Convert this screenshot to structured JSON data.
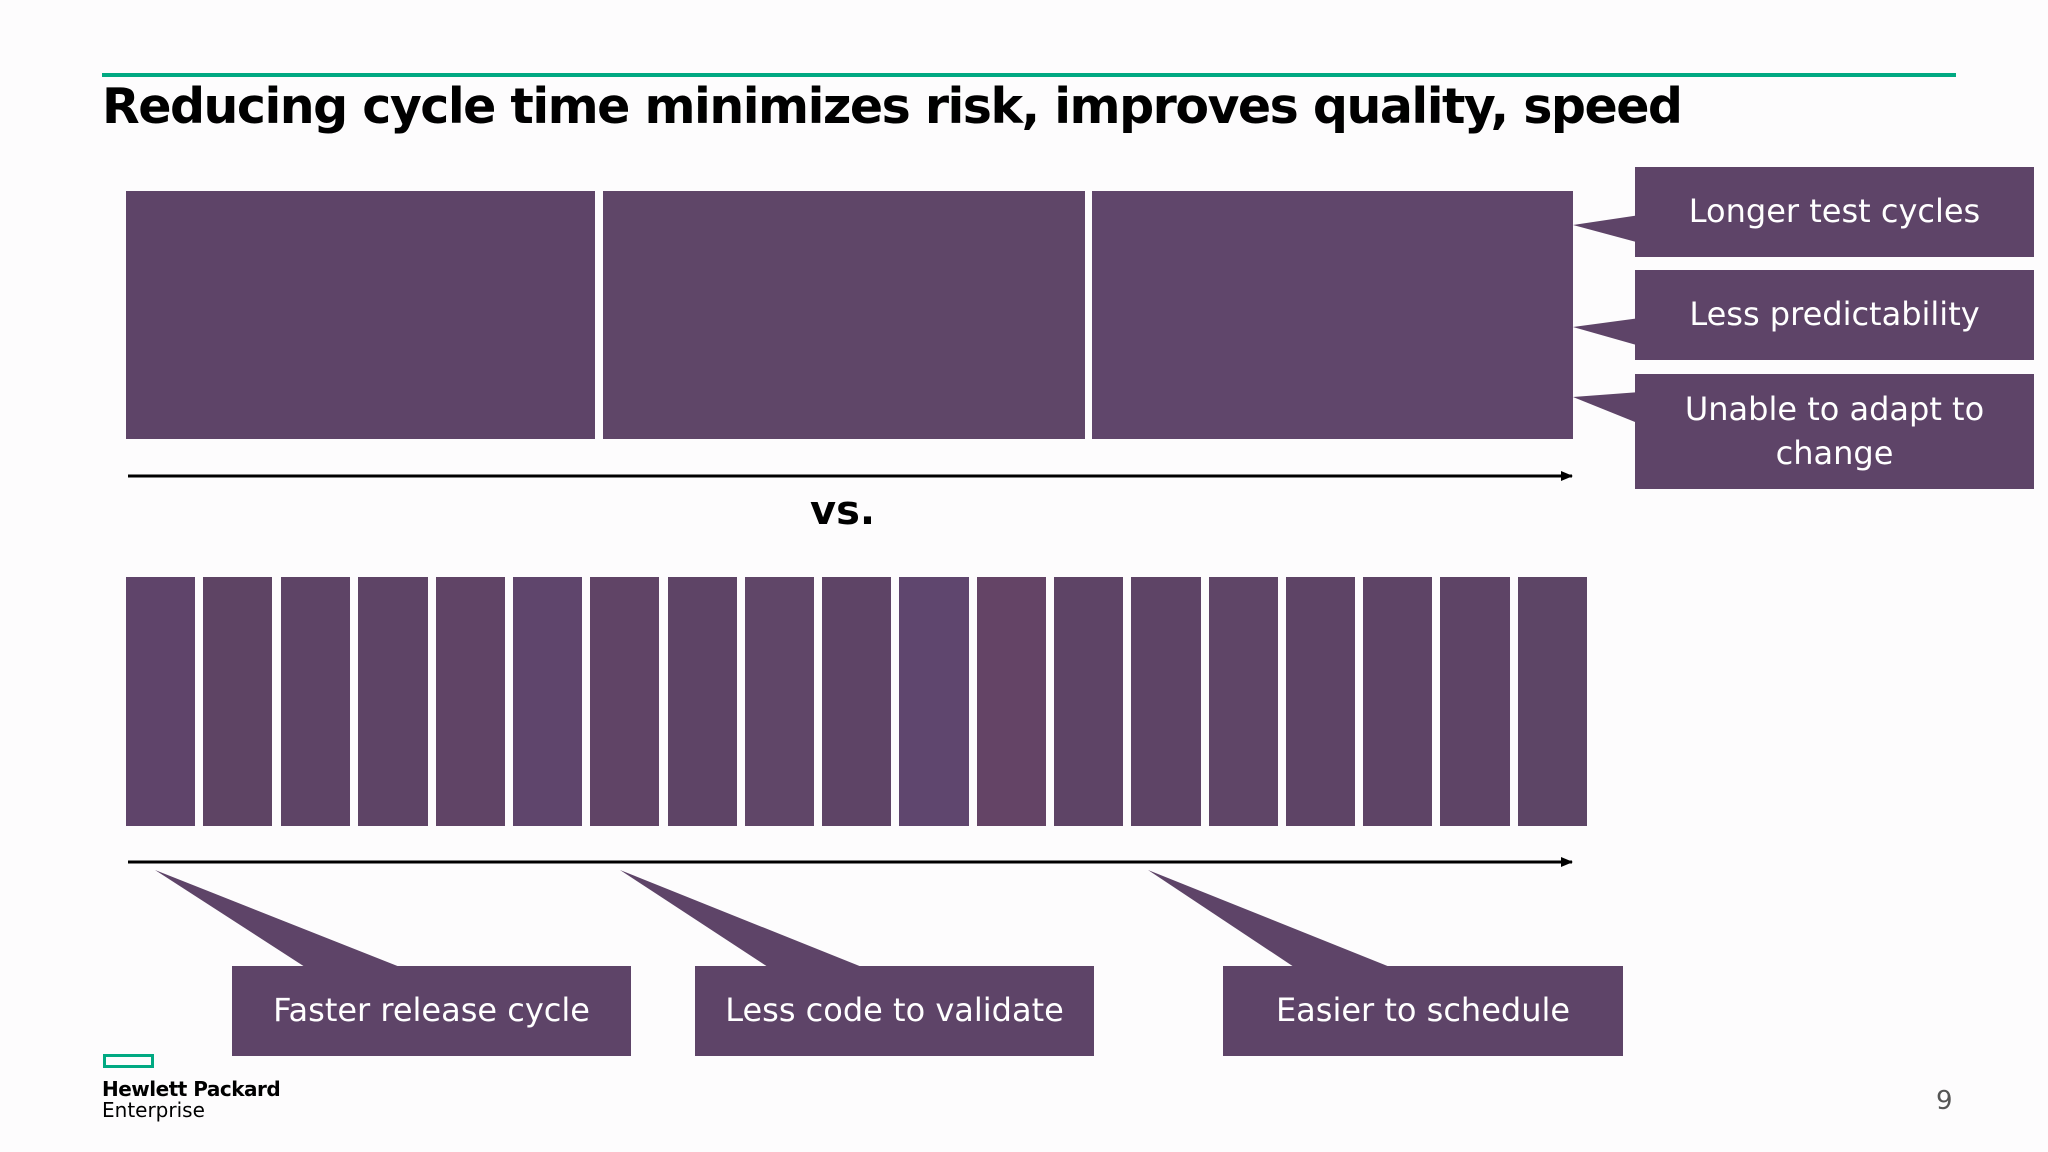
{
  "slide": {
    "title": "Reducing cycle time minimizes risk, improves quality, speed",
    "vs_label": "vs.",
    "page_number": "9"
  },
  "colors": {
    "accent": "#01a982",
    "block": "#5e4468",
    "text": "#000000"
  },
  "long_cycles": {
    "block_count": 3,
    "callouts": [
      "Longer test cycles",
      "Less predictability",
      "Unable to adapt to change"
    ]
  },
  "short_cycles": {
    "block_count": 19,
    "callouts": [
      "Faster release cycle",
      "Less code to validate",
      "Easier to schedule"
    ]
  },
  "logo": {
    "line1": "Hewlett Packard",
    "line2": "Enterprise"
  }
}
